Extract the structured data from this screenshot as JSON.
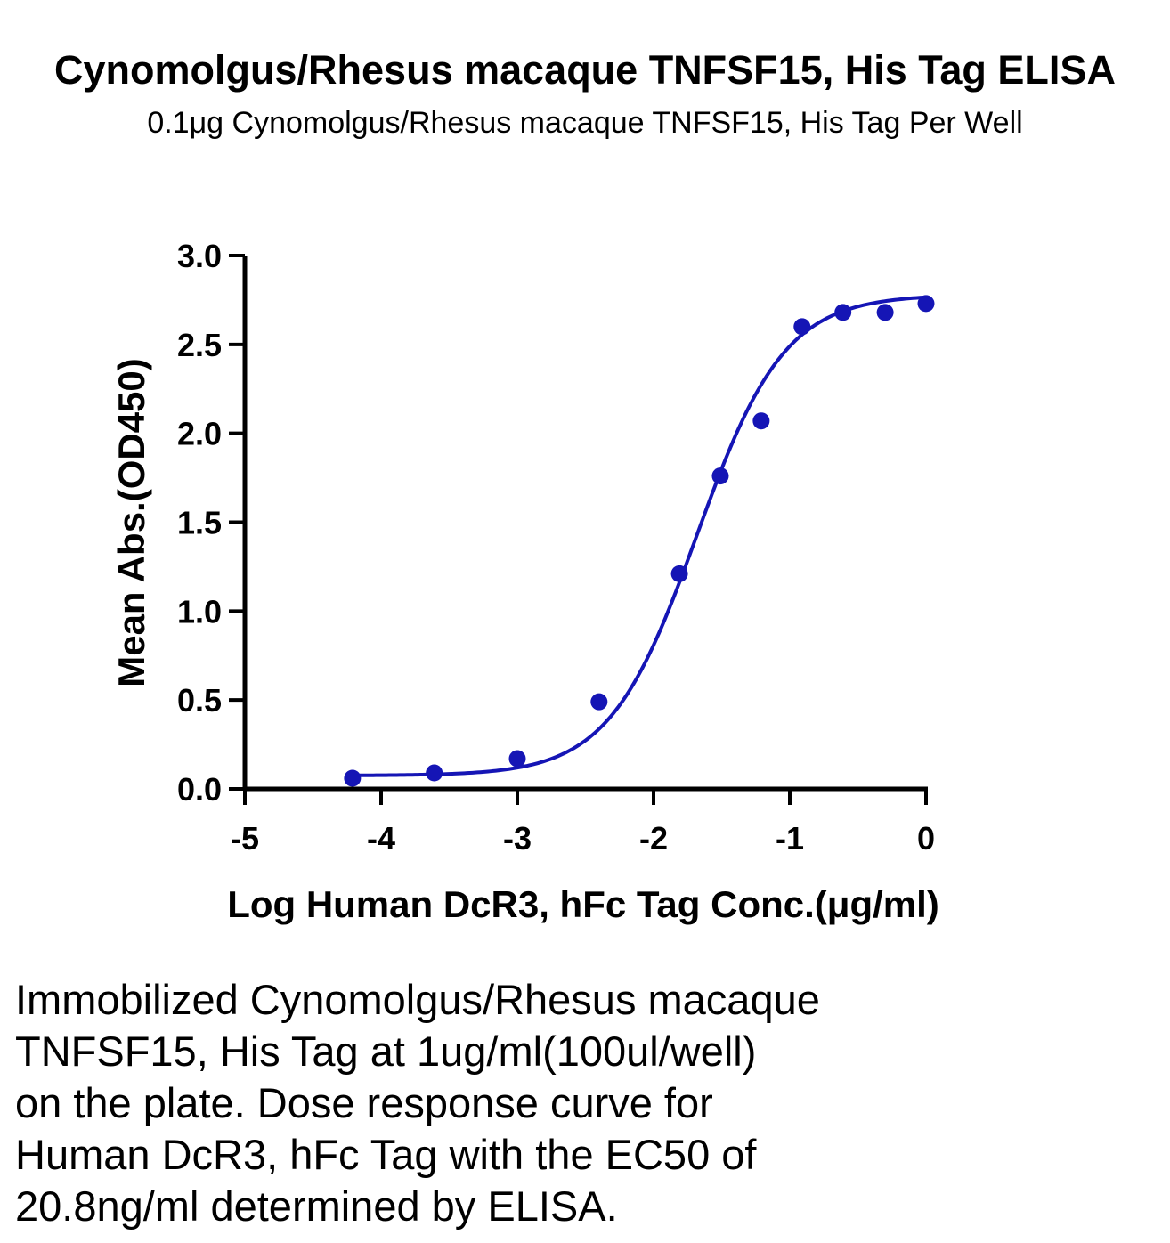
{
  "chart_data": {
    "type": "scatter",
    "title": "Cynomolgus/Rhesus macaque TNFSF15, His Tag ELISA",
    "subtitle": "0.1μg Cynomolgus/Rhesus macaque TNFSF15, His Tag Per Well",
    "xlabel": "Log Human DcR3, hFc Tag Conc.(μg/ml)",
    "ylabel": "Mean Abs.(OD450)",
    "xlim": [
      -5,
      0
    ],
    "ylim": [
      0,
      3.0
    ],
    "x_ticks": [
      "-5",
      "-4",
      "-3",
      "-2",
      "-1",
      "0"
    ],
    "y_ticks": [
      "0.0",
      "0.5",
      "1.0",
      "1.5",
      "2.0",
      "2.5",
      "3.0"
    ],
    "grid": false,
    "series": [
      {
        "color": "#1515b5",
        "marker": "circle",
        "fit": "4PL sigmoid",
        "x": [
          -4.21,
          -3.61,
          -3.0,
          -2.4,
          -1.81,
          -1.51,
          -1.21,
          -0.91,
          -0.61,
          -0.3,
          0.0
        ],
        "y": [
          0.06,
          0.09,
          0.17,
          0.49,
          1.21,
          1.76,
          2.07,
          2.6,
          2.68,
          2.68,
          2.73
        ]
      }
    ]
  },
  "caption": {
    "lines": [
      "Immobilized Cynomolgus/Rhesus macaque",
      "TNFSF15, His Tag at 1ug/ml(100ul/well)",
      "on the plate. Dose response curve for",
      "Human DcR3, hFc Tag with the EC50 of",
      "20.8ng/ml determined by ELISA."
    ]
  }
}
